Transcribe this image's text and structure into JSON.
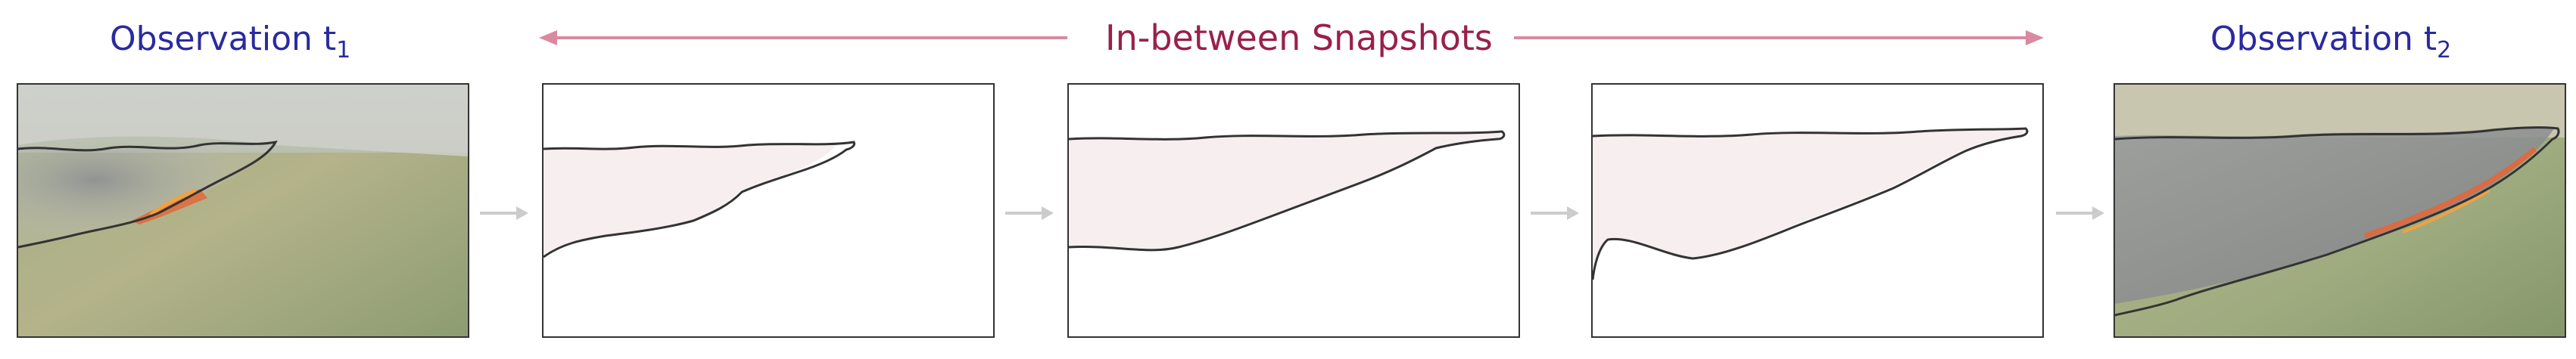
{
  "labels": {
    "obs1_text": "Observation t",
    "obs1_sub": "1",
    "snapshots": "In-between Snapshots",
    "obs2_text": "Observation t",
    "obs2_sub": "2"
  },
  "colors": {
    "observation_text": "#2a2aa0",
    "snapshots_text": "#9a2048",
    "range_arrow": "#d98aa0",
    "flow_arrow": "#cccccc",
    "fire_region_fill": "#f7eef0",
    "boundary_stroke": "#333333"
  },
  "panels": [
    {
      "name": "observation-t1-photo",
      "kind": "photo"
    },
    {
      "name": "snapshot-1",
      "kind": "mask"
    },
    {
      "name": "snapshot-2",
      "kind": "mask"
    },
    {
      "name": "snapshot-3",
      "kind": "mask"
    },
    {
      "name": "observation-t2-photo",
      "kind": "photo"
    }
  ]
}
